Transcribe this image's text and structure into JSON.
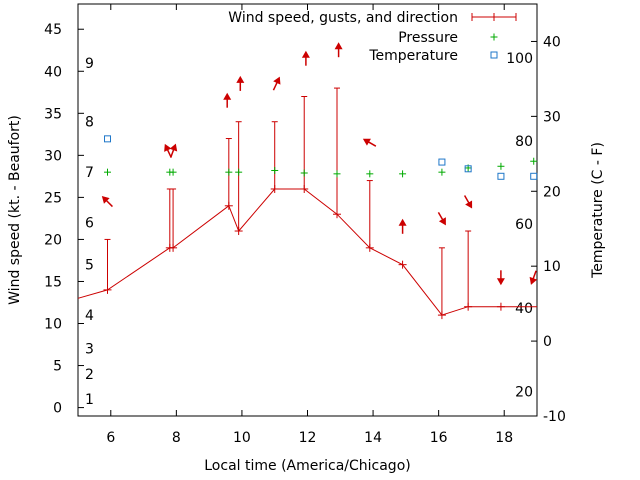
{
  "chart_data": {
    "type": "line",
    "title": "",
    "xlabel": "Local time (America/Chicago)",
    "ylabel": "Wind speed (kt. - Beaufort)",
    "y2label": "Temperature (C - F)",
    "xlim": [
      5,
      19
    ],
    "ylim": [
      -1,
      48
    ],
    "y2lim": [
      -10,
      45
    ],
    "x_ticks": [
      6,
      8,
      10,
      12,
      14,
      16,
      18
    ],
    "y_ticks": [
      0,
      5,
      10,
      15,
      20,
      25,
      30,
      35,
      40,
      45
    ],
    "y2_ticks": [
      -10,
      0,
      10,
      20,
      30,
      40
    ],
    "beaufort_labels": [
      {
        "label": "1",
        "value": 1
      },
      {
        "label": "2",
        "value": 4
      },
      {
        "label": "3",
        "value": 7
      },
      {
        "label": "4",
        "value": 11
      },
      {
        "label": "5",
        "value": 17
      },
      {
        "label": "6",
        "value": 22
      },
      {
        "label": "7",
        "value": 28
      },
      {
        "label": "8",
        "value": 34
      },
      {
        "label": "9",
        "value": 41
      }
    ],
    "fahrenheit_labels": [
      {
        "label": "20",
        "value": -6.7
      },
      {
        "label": "40",
        "value": 4.4
      },
      {
        "label": "60",
        "value": 15.6
      },
      {
        "label": "80",
        "value": 26.7
      },
      {
        "label": "100",
        "value": 37.8
      }
    ],
    "legend": {
      "position": "top-right",
      "entries": [
        "Wind speed, gusts, and direction",
        "Pressure",
        "Temperature"
      ]
    },
    "grid": false,
    "series": [
      {
        "name": "Wind speed, gusts, and direction",
        "color": "#cc0000",
        "x": [
          5,
          5.9,
          7.8,
          7.9,
          9.6,
          9.9,
          11,
          11.9,
          12.9,
          13.9,
          14.9,
          16.1,
          16.9,
          17.9,
          19
        ],
        "y": [
          13,
          14,
          19,
          19,
          24,
          21,
          26,
          26,
          23,
          19,
          17,
          11,
          12,
          12,
          12
        ],
        "gusts": [
          null,
          20,
          26,
          26,
          32,
          34,
          34,
          37,
          38,
          27,
          null,
          19,
          21,
          null,
          null
        ],
        "arrows": [
          {
            "x": 5.9,
            "value": 24.5,
            "rotation": -45
          },
          {
            "x": 7.75,
            "value": 30.5,
            "rotation": -25
          },
          {
            "x": 7.9,
            "value": 30.5,
            "rotation": 20
          },
          {
            "x": 9.55,
            "value": 36.5,
            "rotation": 0
          },
          {
            "x": 9.95,
            "value": 38.5,
            "rotation": 0
          },
          {
            "x": 11.05,
            "value": 38.5,
            "rotation": 25
          },
          {
            "x": 11.95,
            "value": 41.5,
            "rotation": 0
          },
          {
            "x": 12.95,
            "value": 42.5,
            "rotation": 0
          },
          {
            "x": 13.9,
            "value": 31.5,
            "rotation": -60
          },
          {
            "x": 14.9,
            "value": 21.5,
            "rotation": 0
          },
          {
            "x": 16.1,
            "value": 22.5,
            "rotation": 150
          },
          {
            "x": 16.9,
            "value": 24.5,
            "rotation": 150
          },
          {
            "x": 17.9,
            "value": 15.5,
            "rotation": 180
          },
          {
            "x": 18.9,
            "value": 15.5,
            "rotation": 200
          }
        ]
      },
      {
        "name": "Pressure",
        "color": "#00aa00",
        "x": [
          5.9,
          7.8,
          7.9,
          9.6,
          9.9,
          11,
          11.9,
          12.9,
          13.9,
          14.9,
          16.1,
          16.9,
          17.9,
          18.9
        ],
        "y": [
          28,
          28,
          28,
          28,
          28,
          28.2,
          27.9,
          27.8,
          27.8,
          27.8,
          28,
          28.5,
          28.7,
          29.3
        ]
      },
      {
        "name": "Temperature",
        "color": "#1f77c9",
        "x": [
          5.9,
          16.1,
          16.9,
          17.9,
          18.9
        ],
        "y": [
          27,
          23.9,
          23,
          22,
          22
        ]
      }
    ]
  }
}
